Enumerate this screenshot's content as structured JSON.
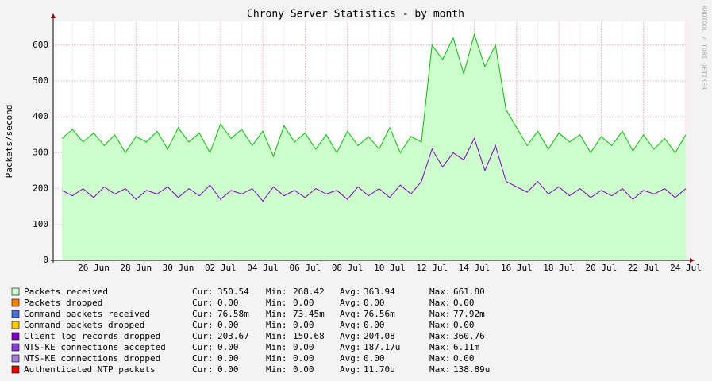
{
  "chart_data": {
    "type": "area-line",
    "title": "Chrony Server Statistics - by month",
    "y_label": "Packets/second",
    "watermark": "RRDTOOL / TOBI OETIKER",
    "categories": [
      null,
      null,
      null,
      "26 Jun",
      null,
      null,
      null,
      "28 Jun",
      null,
      null,
      null,
      "30 Jun",
      null,
      null,
      null,
      "02 Jul",
      null,
      null,
      null,
      "04 Jul",
      null,
      null,
      null,
      "06 Jul",
      null,
      null,
      null,
      "08 Jul",
      null,
      null,
      null,
      "10 Jul",
      null,
      null,
      null,
      "12 Jul",
      null,
      null,
      null,
      "14 Jul",
      null,
      null,
      null,
      "16 Jul",
      null,
      null,
      null,
      "18 Jul",
      null,
      null,
      null,
      "20 Jul",
      null,
      null,
      null,
      "22 Jul",
      null,
      null,
      null,
      "24 Jul"
    ],
    "ylim": [
      0,
      666
    ],
    "yticks": [
      0,
      100,
      200,
      300,
      400,
      500,
      600
    ],
    "grid": true,
    "stat_labels": [
      "Cur:",
      "Min:",
      "Avg:",
      "Max:"
    ],
    "series": [
      {
        "name": "Packets received",
        "color": "#ccffcc",
        "line_color": "#00c000",
        "fill": true,
        "values": [
          340,
          365,
          330,
          355,
          320,
          350,
          300,
          345,
          330,
          360,
          310,
          370,
          330,
          355,
          300,
          380,
          340,
          365,
          320,
          360,
          290,
          375,
          330,
          355,
          310,
          350,
          300,
          360,
          320,
          345,
          310,
          370,
          300,
          345,
          330,
          600,
          560,
          620,
          520,
          630,
          540,
          600,
          420,
          370,
          320,
          360,
          310,
          355,
          330,
          350,
          300,
          345,
          320,
          360,
          305,
          350,
          310,
          340,
          300,
          350
        ],
        "stats": [
          "350.54",
          "268.42",
          "363.94",
          "661.80"
        ]
      },
      {
        "name": "Packets dropped",
        "color": "#ff8000",
        "stats": [
          "0.00",
          "0.00",
          "0.00",
          "0.00"
        ]
      },
      {
        "name": "Command packets received",
        "color": "#4a70e0",
        "stats": [
          "76.58m",
          "73.45m",
          "76.56m",
          "77.92m"
        ]
      },
      {
        "name": "Command packets dropped",
        "color": "#ffcc00",
        "stats": [
          "0.00",
          "0.00",
          "0.00",
          "0.00"
        ]
      },
      {
        "name": "Client log records dropped",
        "color": "#8000c0",
        "line_color": "#8000c0",
        "values": [
          195,
          180,
          200,
          175,
          205,
          185,
          200,
          170,
          195,
          185,
          205,
          175,
          200,
          180,
          210,
          170,
          195,
          185,
          200,
          165,
          205,
          180,
          195,
          175,
          200,
          185,
          195,
          170,
          205,
          180,
          200,
          175,
          210,
          185,
          220,
          310,
          260,
          300,
          280,
          340,
          250,
          320,
          220,
          205,
          190,
          220,
          185,
          205,
          180,
          200,
          175,
          195,
          180,
          200,
          170,
          195,
          185,
          200,
          175,
          200
        ],
        "stats": [
          "203.67",
          "150.68",
          "204.08",
          "360.76"
        ]
      },
      {
        "name": "NTS-KE connections accepted",
        "color": "#8a3fd8",
        "stats": [
          "0.00",
          "0.00",
          "187.17u",
          "6.11m"
        ]
      },
      {
        "name": "NTS-KE connections dropped",
        "color": "#a080e0",
        "stats": [
          "0.00",
          "0.00",
          "0.00",
          "0.00"
        ]
      },
      {
        "name": "Authenticated NTP packets",
        "color": "#ee0000",
        "stats": [
          "0.00",
          "0.00",
          "11.70u",
          "138.89u"
        ]
      }
    ]
  }
}
